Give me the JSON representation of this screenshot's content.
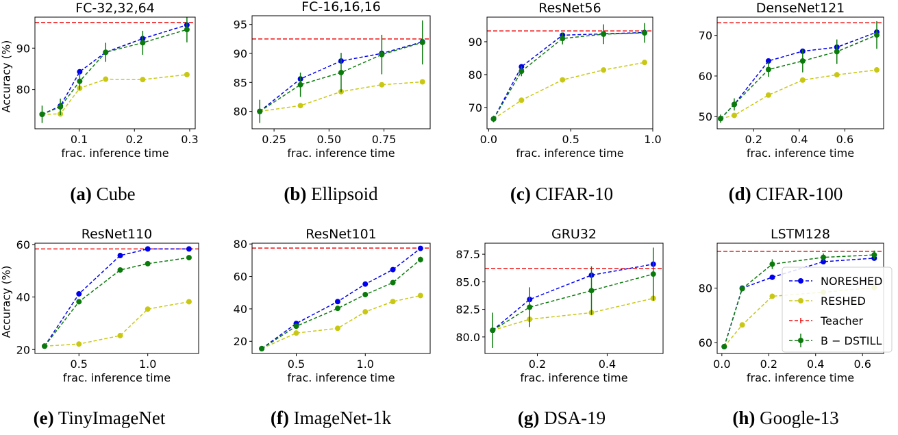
{
  "legend": {
    "placement": "lower-right",
    "panel": 7,
    "entries": [
      {
        "key": "noreshed",
        "label": "NORESHED",
        "color": "#0000ee"
      },
      {
        "key": "reshed",
        "label": "RESHED",
        "color": "#c8c814"
      },
      {
        "key": "teacher",
        "label": "Teacher",
        "color": "#ee1111"
      },
      {
        "key": "bdstill",
        "label": "B − DSTILL",
        "color": "#0a7a0a"
      }
    ]
  },
  "chart_data": [
    {
      "type": "line",
      "caption_letter": "(a)",
      "caption_text": "Cube",
      "title": "FC-32,32,64",
      "xlabel": "frac. inference time",
      "ylabel": "Accuracy (%)",
      "xlim": [
        0.02,
        0.31
      ],
      "ylim": [
        70.5,
        97.5
      ],
      "xticks": [
        0.1,
        0.2,
        0.3
      ],
      "xtick_labels": [
        "0.1",
        "0.2",
        "0.3"
      ],
      "yticks": [
        80,
        90
      ],
      "ytick_labels": [
        "80",
        "90"
      ],
      "teacher": 96.2,
      "x": [
        0.033,
        0.066,
        0.101,
        0.148,
        0.215,
        0.295
      ],
      "series": [
        {
          "key": "noreshed",
          "values": [
            74.0,
            76.0,
            84.3,
            89.0,
            92.3,
            95.6
          ]
        },
        {
          "key": "reshed",
          "values": [
            74.0,
            74.1,
            80.3,
            82.5,
            82.4,
            83.6
          ]
        },
        {
          "key": "bdstill",
          "values": [
            74.0,
            75.8,
            82.0,
            89.0,
            91.3,
            94.5
          ],
          "err": [
            2.1,
            2.0,
            2.0,
            2.3,
            2.9,
            3.1
          ]
        }
      ]
    },
    {
      "type": "line",
      "caption_letter": "(b)",
      "caption_text": "Ellipsoid",
      "title": "FC-16,16,16",
      "xlabel": "frac. inference time",
      "ylabel": "",
      "xlim": [
        0.15,
        0.96
      ],
      "ylim": [
        77.0,
        96.5
      ],
      "xticks": [
        0.25,
        0.5,
        0.75
      ],
      "xtick_labels": [
        "0.25",
        "0.50",
        "0.75"
      ],
      "yticks": [
        80,
        85,
        90,
        95
      ],
      "ytick_labels": [
        "80",
        "85",
        "90",
        "95"
      ],
      "teacher": 92.5,
      "x": [
        0.185,
        0.37,
        0.555,
        0.74,
        0.925
      ],
      "series": [
        {
          "key": "noreshed",
          "values": [
            80.0,
            85.6,
            88.7,
            90.0,
            92.0
          ]
        },
        {
          "key": "reshed",
          "values": [
            80.0,
            81.0,
            83.4,
            84.6,
            85.1
          ]
        },
        {
          "key": "bdstill",
          "values": [
            80.0,
            84.6,
            86.7,
            89.8,
            91.9
          ],
          "err": [
            2.0,
            2.1,
            3.4,
            3.4,
            3.8
          ]
        }
      ]
    },
    {
      "type": "line",
      "caption_letter": "(c)",
      "caption_text": "CIFAR-10",
      "title": "ResNet56",
      "xlabel": "frac. inference time",
      "ylabel": "",
      "xlim": [
        -0.01,
        1.0
      ],
      "ylim": [
        63.5,
        97.5
      ],
      "xticks": [
        0.0,
        0.5,
        1.0
      ],
      "xtick_labels": [
        "0.0",
        "0.5",
        "1.0"
      ],
      "yticks": [
        70,
        80,
        90
      ],
      "ytick_labels": [
        "70",
        "80",
        "90"
      ],
      "teacher": 93.3,
      "x": [
        0.03,
        0.2,
        0.45,
        0.7,
        0.95
      ],
      "series": [
        {
          "key": "noreshed",
          "values": [
            66.5,
            82.4,
            92.0,
            92.4,
            92.8
          ]
        },
        {
          "key": "reshed",
          "values": [
            66.5,
            72.2,
            78.4,
            81.4,
            83.7
          ]
        },
        {
          "key": "bdstill",
          "values": [
            66.5,
            81.0,
            91.0,
            92.3,
            92.7
          ],
          "err": [
            1.0,
            1.5,
            1.8,
            3.0,
            3.0
          ]
        }
      ]
    },
    {
      "type": "line",
      "caption_letter": "(d)",
      "caption_text": "CIFAR-100",
      "title": "DenseNet121",
      "xlabel": "frac. inference time",
      "ylabel": "",
      "xlim": [
        0.04,
        0.77
      ],
      "ylim": [
        47.0,
        74.5
      ],
      "xticks": [
        0.2,
        0.4,
        0.6
      ],
      "xtick_labels": [
        "0.2",
        "0.4",
        "0.6"
      ],
      "yticks": [
        50,
        60,
        70
      ],
      "ytick_labels": [
        "50",
        "60",
        "70"
      ],
      "teacher": 73.1,
      "x": [
        0.055,
        0.115,
        0.265,
        0.415,
        0.565,
        0.74
      ],
      "series": [
        {
          "key": "noreshed",
          "values": [
            49.5,
            53.0,
            63.7,
            66.1,
            67.1,
            70.8
          ]
        },
        {
          "key": "reshed",
          "values": [
            49.5,
            50.3,
            55.3,
            59.0,
            60.3,
            61.5
          ]
        },
        {
          "key": "bdstill",
          "values": [
            49.5,
            53.0,
            61.6,
            63.7,
            66.0,
            70.1
          ],
          "err": [
            1.0,
            1.5,
            1.8,
            2.8,
            3.0,
            3.4
          ]
        }
      ]
    },
    {
      "type": "line",
      "caption_letter": "(e)",
      "caption_text": "TinyImageNet",
      "title": "ResNet110",
      "xlabel": "frac. inference time",
      "ylabel": "Accuracy (%)",
      "xlim": [
        0.18,
        1.37
      ],
      "ylim": [
        18.5,
        60.5
      ],
      "xticks": [
        0.5,
        1.0
      ],
      "xtick_labels": [
        "0.5",
        "1.0"
      ],
      "yticks": [
        20,
        40,
        60
      ],
      "ytick_labels": [
        "20",
        "40",
        "60"
      ],
      "teacher": 58.3,
      "x": [
        0.25,
        0.5,
        0.8,
        1.0,
        1.3
      ],
      "series": [
        {
          "key": "noreshed",
          "values": [
            21.3,
            41.2,
            55.8,
            58.3,
            58.3
          ]
        },
        {
          "key": "reshed",
          "values": [
            21.3,
            22.1,
            25.3,
            35.4,
            38.2
          ]
        },
        {
          "key": "bdstill",
          "values": [
            21.3,
            38.2,
            50.3,
            52.7,
            55.0
          ],
          "err": [
            0.5,
            0.6,
            0.6,
            0.6,
            0.6
          ]
        }
      ]
    },
    {
      "type": "line",
      "caption_letter": "(f)",
      "caption_text": "ImageNet-1k",
      "title": "ResNet101",
      "xlabel": "frac. inference time",
      "ylabel": "",
      "xlim": [
        0.18,
        1.47
      ],
      "ylim": [
        12.5,
        80.5
      ],
      "xticks": [
        0.5,
        1.0
      ],
      "xtick_labels": [
        "0.5",
        "1.0"
      ],
      "yticks": [
        20,
        40,
        60,
        80
      ],
      "ytick_labels": [
        "20",
        "40",
        "60",
        "80"
      ],
      "teacher": 77.5,
      "x": [
        0.25,
        0.5,
        0.8,
        1.0,
        1.2,
        1.4
      ],
      "series": [
        {
          "key": "noreshed",
          "values": [
            15.5,
            31.0,
            44.5,
            55.3,
            64.2,
            77.3
          ]
        },
        {
          "key": "reshed",
          "values": [
            15.5,
            25.1,
            28.0,
            38.2,
            44.5,
            48.2
          ]
        },
        {
          "key": "bdstill",
          "values": [
            15.5,
            29.3,
            40.3,
            48.8,
            56.2,
            70.4
          ],
          "err": [
            0.6,
            0.8,
            0.8,
            0.8,
            1.2,
            1.8
          ]
        }
      ]
    },
    {
      "type": "line",
      "caption_letter": "(g)",
      "caption_text": "DSA-19",
      "title": "GRU32",
      "xlabel": "frac. inference time",
      "ylabel": "",
      "xlim": [
        0.05,
        0.56
      ],
      "ylim": [
        78.5,
        88.5
      ],
      "xticks": [
        0.2,
        0.4
      ],
      "xtick_labels": [
        "0.2",
        "0.4"
      ],
      "yticks": [
        80.0,
        82.5,
        85.0,
        87.5
      ],
      "ytick_labels": [
        "80.0",
        "82.5",
        "85.0",
        "87.5"
      ],
      "teacher": 86.2,
      "x": [
        0.072,
        0.178,
        0.355,
        0.532
      ],
      "series": [
        {
          "key": "noreshed",
          "values": [
            80.6,
            83.4,
            85.6,
            86.6
          ]
        },
        {
          "key": "reshed",
          "values": [
            80.6,
            81.6,
            82.2,
            83.5
          ]
        },
        {
          "key": "bdstill",
          "values": [
            80.6,
            82.7,
            84.2,
            85.7
          ],
          "err": [
            1.6,
            1.8,
            2.2,
            2.4
          ]
        }
      ]
    },
    {
      "type": "line",
      "caption_letter": "(h)",
      "caption_text": "Google-13",
      "title": "LSTM128",
      "xlabel": "frac. inference time",
      "ylabel": "",
      "xlim": [
        -0.02,
        0.69
      ],
      "ylim": [
        56.0,
        96.5
      ],
      "xticks": [
        0.0,
        0.2,
        0.4,
        0.6
      ],
      "xtick_labels": [
        "0.0",
        "0.2",
        "0.4",
        "0.6"
      ],
      "yticks": [
        60,
        80
      ],
      "ytick_labels": [
        "60",
        "80"
      ],
      "teacher": 93.5,
      "x": [
        0.01,
        0.087,
        0.215,
        0.433,
        0.65
      ],
      "series": [
        {
          "key": "noreshed",
          "values": [
            58.5,
            80.0,
            84.0,
            89.7,
            91.0
          ]
        },
        {
          "key": "reshed",
          "values": [
            58.5,
            66.5,
            77.0,
            78.5,
            80.2
          ]
        },
        {
          "key": "bdstill",
          "values": [
            58.5,
            79.8,
            88.8,
            91.3,
            92.2
          ],
          "err": [
            0.8,
            1.0,
            1.8,
            1.4,
            1.6
          ]
        }
      ]
    }
  ]
}
